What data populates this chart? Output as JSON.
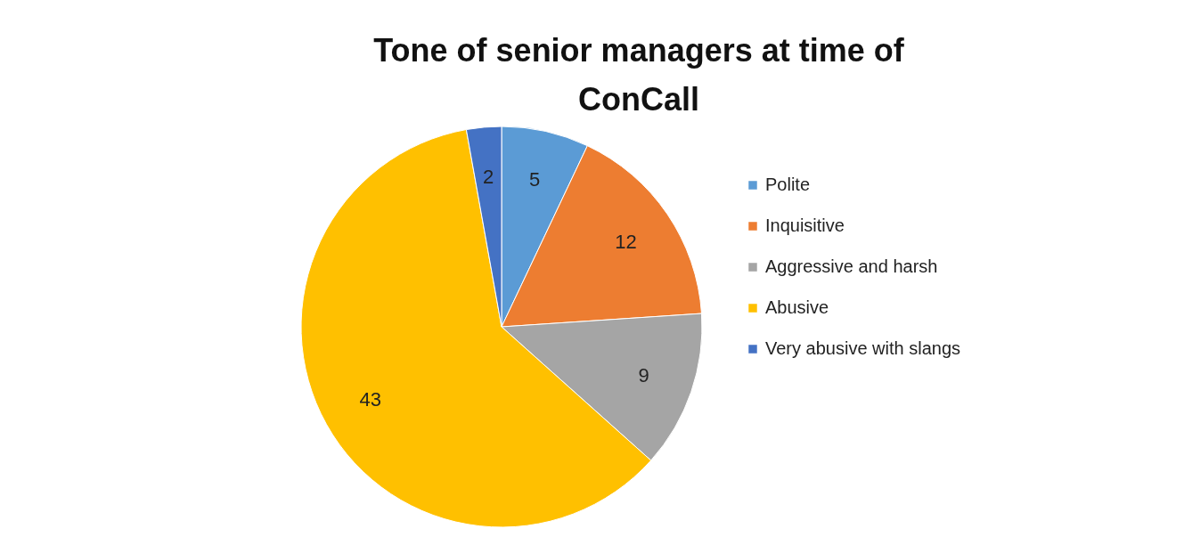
{
  "chart_data": {
    "type": "pie",
    "title": "Tone of senior managers at time of ConCall",
    "categories": [
      "Polite",
      "Inquisitive",
      "Aggressive and harsh",
      "Abusive",
      "Very abusive with slangs"
    ],
    "values": [
      5,
      12,
      9,
      43,
      2
    ],
    "colors": [
      "#5b9bd5",
      "#ed7d31",
      "#a5a5a5",
      "#ffc000",
      "#4472c4"
    ],
    "data_labels": true,
    "legend": "right"
  }
}
